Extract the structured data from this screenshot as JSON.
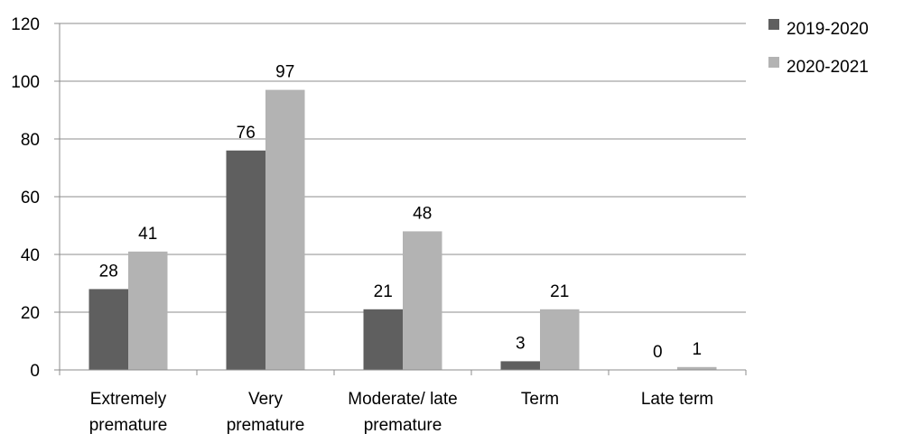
{
  "chart_data": {
    "type": "bar",
    "categories": [
      [
        "Extremely",
        "premature"
      ],
      [
        "Very",
        "premature"
      ],
      [
        "Moderate/ late",
        "premature"
      ],
      [
        "Term"
      ],
      [
        "Late term"
      ]
    ],
    "series": [
      {
        "name": "2019-2020",
        "color": "#5f5f5f",
        "values": [
          28,
          76,
          21,
          3,
          0
        ]
      },
      {
        "name": "2020-2021",
        "color": "#b3b3b3",
        "values": [
          41,
          97,
          48,
          21,
          1
        ]
      }
    ],
    "title": "",
    "xlabel": "",
    "ylabel": "",
    "ylim": [
      0,
      120
    ],
    "yticks": [
      0,
      20,
      40,
      60,
      80,
      100,
      120
    ],
    "grid": true,
    "legend": "right"
  }
}
